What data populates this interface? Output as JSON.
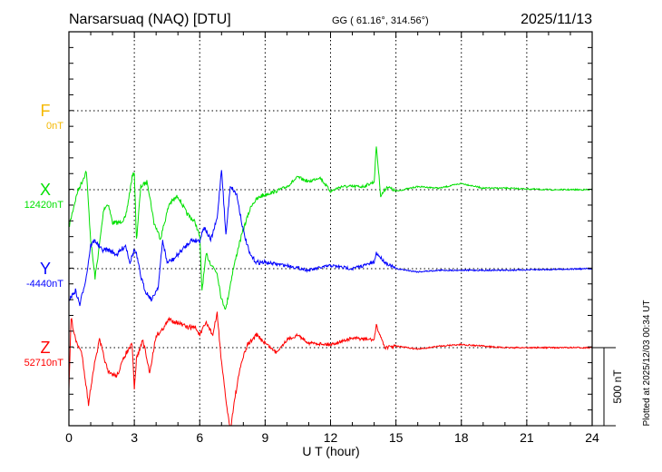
{
  "header": {
    "title": "Narsarsuaq (NAQ)  [DTU]",
    "coords": "GG ( 61.16°, 314.56°)",
    "date": "2025/11/13"
  },
  "footer": {
    "plotted": "Plotted at 2025/12/03 00:34 UT"
  },
  "chart_data": {
    "type": "line",
    "xlabel": "U T (hour)",
    "xlim": [
      0,
      24
    ],
    "xticks": [
      "0",
      "3",
      "6",
      "9",
      "12",
      "15",
      "18",
      "21",
      "24"
    ],
    "grid": true,
    "scale_bar": "500 nT",
    "components": [
      {
        "name": "F",
        "baseline": "0nT",
        "color": "#f5b800",
        "x": [],
        "values": []
      },
      {
        "name": "X",
        "baseline": "12420nT",
        "color": "#00e000",
        "x": [
          0,
          0.2,
          0.4,
          0.6,
          0.8,
          1.0,
          1.2,
          1.4,
          1.6,
          1.8,
          2.0,
          2.3,
          2.6,
          2.9,
          3.0,
          3.1,
          3.3,
          3.6,
          3.9,
          4.2,
          4.6,
          5.0,
          5.4,
          5.8,
          6.0,
          6.1,
          6.3,
          6.5,
          6.8,
          7.0,
          7.2,
          7.5,
          7.8,
          8.1,
          8.4,
          8.8,
          9.5,
          10,
          10.5,
          11,
          11.5,
          12,
          12.5,
          13,
          13.5,
          14,
          14.1,
          14.3,
          14.6,
          15,
          16,
          17,
          18,
          19,
          20,
          22,
          24
        ],
        "values": [
          -240,
          -120,
          -10,
          50,
          120,
          -320,
          -560,
          -350,
          -120,
          -90,
          -210,
          -210,
          -180,
          80,
          110,
          -320,
          20,
          50,
          -210,
          -310,
          -90,
          -40,
          -150,
          -210,
          -300,
          -640,
          -410,
          -470,
          -530,
          -700,
          -760,
          -530,
          -350,
          -210,
          -90,
          -40,
          -10,
          20,
          80,
          50,
          80,
          -10,
          20,
          20,
          20,
          50,
          280,
          -40,
          20,
          -10,
          20,
          10,
          40,
          10,
          10,
          0,
          0
        ]
      },
      {
        "name": "Y",
        "baseline": "-4440nT",
        "color": "#0000ff",
        "x": [
          0,
          0.3,
          0.5,
          0.8,
          1.0,
          1.2,
          1.5,
          1.8,
          2.2,
          2.6,
          2.8,
          3.0,
          3.1,
          3.3,
          3.5,
          3.8,
          4.1,
          4.3,
          4.5,
          4.8,
          5.2,
          5.6,
          6.0,
          6.2,
          6.5,
          6.8,
          7.0,
          7.2,
          7.4,
          7.7,
          8.0,
          8.3,
          8.6,
          9,
          10,
          11,
          12,
          13,
          14,
          14.1,
          14.5,
          15,
          16,
          17,
          18,
          20,
          24
        ],
        "values": [
          -200,
          -140,
          -230,
          -50,
          150,
          180,
          120,
          120,
          90,
          150,
          40,
          120,
          90,
          -50,
          -140,
          -200,
          -110,
          180,
          40,
          60,
          120,
          180,
          180,
          270,
          180,
          320,
          640,
          210,
          530,
          470,
          240,
          90,
          40,
          40,
          20,
          -10,
          20,
          0,
          40,
          100,
          40,
          0,
          -20,
          -10,
          -10,
          -10,
          0
        ]
      },
      {
        "name": "Z",
        "baseline": "52710nT",
        "color": "#ff0000",
        "x": [
          0,
          0.1,
          0.3,
          0.6,
          0.9,
          1.1,
          1.4,
          1.8,
          2.2,
          2.6,
          2.9,
          3.0,
          3.1,
          3.4,
          3.7,
          4.0,
          4.2,
          4.6,
          5.0,
          5.4,
          5.8,
          6.0,
          6.3,
          6.6,
          6.8,
          7.0,
          7.2,
          7.4,
          7.6,
          7.9,
          8.2,
          8.6,
          9.0,
          9.5,
          10,
          10.5,
          11,
          12,
          13,
          14,
          14.1,
          14.5,
          15,
          16,
          17,
          18,
          19,
          20,
          24
        ],
        "values": [
          -270,
          190,
          50,
          -40,
          -360,
          -160,
          50,
          -160,
          -180,
          -40,
          20,
          -270,
          -70,
          50,
          -160,
          80,
          100,
          180,
          160,
          130,
          130,
          80,
          160,
          80,
          220,
          -100,
          -330,
          -530,
          -330,
          -100,
          20,
          80,
          30,
          -30,
          50,
          80,
          30,
          20,
          60,
          50,
          140,
          0,
          10,
          -10,
          10,
          20,
          10,
          0,
          0
        ]
      }
    ]
  }
}
